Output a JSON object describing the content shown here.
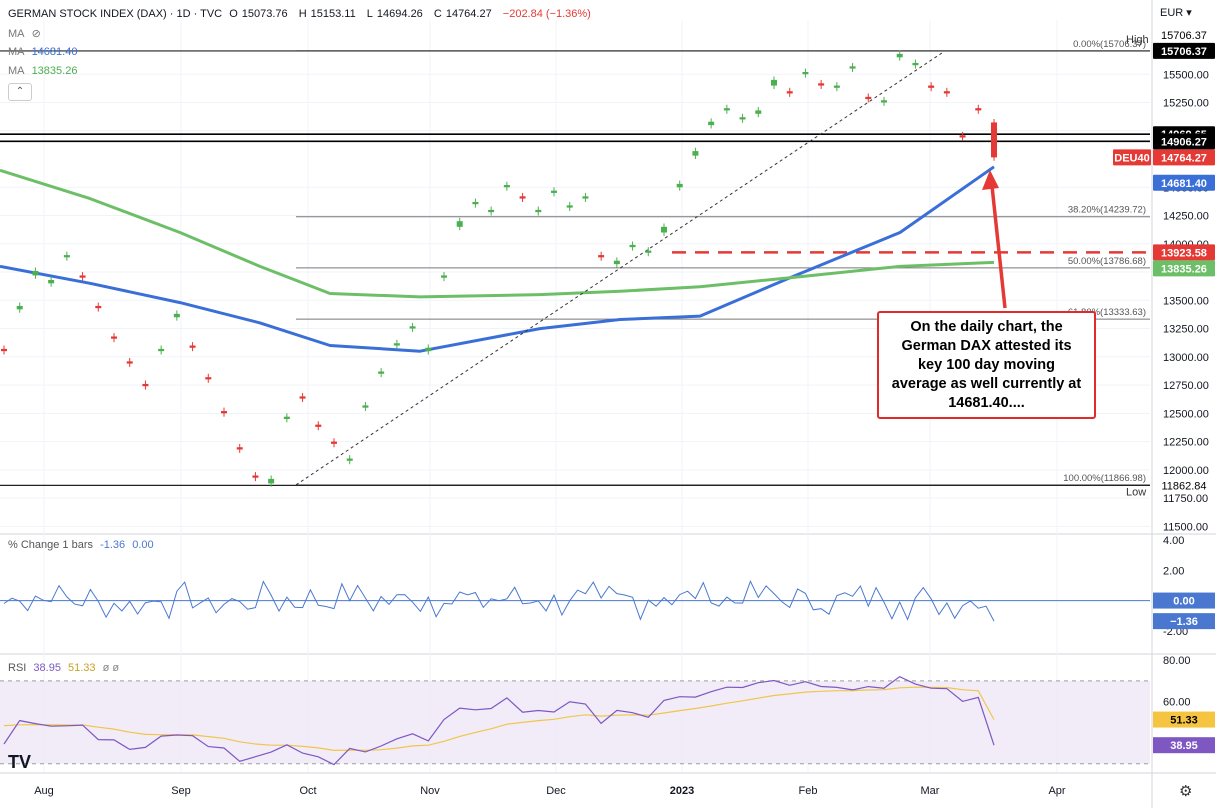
{
  "header": {
    "symbol": "GERMAN STOCK INDEX (DAX) · 1D · TVC",
    "ohlc": [
      {
        "k": "O",
        "v": "15073.76"
      },
      {
        "k": "H",
        "v": "15153.11"
      },
      {
        "k": "L",
        "v": "14694.26"
      },
      {
        "k": "C",
        "v": "14764.27"
      },
      {
        "k": "",
        "v": "−202.84 (−1.36%)"
      }
    ],
    "ma_rows": [
      {
        "label": "MA",
        "value": ""
      },
      {
        "label": "MA",
        "value": "14681.40"
      },
      {
        "label": "MA",
        "value": "13835.26"
      }
    ],
    "currency": "EUR",
    "logo": "TV"
  },
  "annotation": {
    "text": "On the daily chart, the German DAX attested its key 100 day moving average as well currently at 14681.40...."
  },
  "colors": {
    "up": "#4caf50",
    "down": "#e53935",
    "ma100": "#3a6fd8",
    "ma200": "#6dbf67",
    "percent_change": "#4a78d0",
    "rsi": "#7e57c2",
    "rsi_ma": "#f0c64a",
    "annotation_border": "#e12b2b"
  },
  "chart_data": [
    {
      "type": "candlestick",
      "title": "GERMAN STOCK INDEX (DAX) · 1D · TVC",
      "x_ticks": [
        "Aug",
        "Sep",
        "Oct",
        "Nov",
        "Dec",
        "2023",
        "Feb",
        "Mar",
        "Apr"
      ],
      "y_ticks": [
        "15500.00",
        "15250.00",
        "15000.00",
        "14500.00",
        "14250.00",
        "14000.00",
        "13750.00",
        "13500.00",
        "13250.00",
        "13000.00",
        "12750.00",
        "12500.00",
        "12250.00",
        "12000.00",
        "11750.00",
        "11500.00"
      ],
      "ylim": [
        11450,
        15980
      ],
      "ohlc_path": [
        [
          13070,
          13050
        ],
        [
          13420,
          13450
        ],
        [
          13720,
          13760
        ],
        [
          13650,
          13680
        ],
        [
          13880,
          13900
        ],
        [
          13720,
          13700
        ],
        [
          13450,
          13430
        ],
        [
          13180,
          13160
        ],
        [
          12960,
          12940
        ],
        [
          12760,
          12740
        ],
        [
          13050,
          13070
        ],
        [
          13350,
          13380
        ],
        [
          13100,
          13080
        ],
        [
          12820,
          12800
        ],
        [
          12520,
          12500
        ],
        [
          12200,
          12180
        ],
        [
          11950,
          11930
        ],
        [
          11880,
          11920
        ],
        [
          12450,
          12470
        ],
        [
          12650,
          12630
        ],
        [
          12400,
          12380
        ],
        [
          12250,
          12230
        ],
        [
          12080,
          12100
        ],
        [
          12550,
          12570
        ],
        [
          12850,
          12870
        ],
        [
          13100,
          13120
        ],
        [
          13250,
          13270
        ],
        [
          13050,
          13080
        ],
        [
          13700,
          13720
        ],
        [
          14150,
          14200
        ],
        [
          14350,
          14370
        ],
        [
          14280,
          14300
        ],
        [
          14500,
          14520
        ],
        [
          14420,
          14400
        ],
        [
          14280,
          14300
        ],
        [
          14450,
          14470
        ],
        [
          14320,
          14340
        ],
        [
          14400,
          14420
        ],
        [
          13900,
          13880
        ],
        [
          13820,
          13850
        ],
        [
          13970,
          13990
        ],
        [
          13920,
          13940
        ],
        [
          14100,
          14150
        ],
        [
          14500,
          14530
        ],
        [
          14780,
          14820
        ],
        [
          15050,
          15080
        ],
        [
          15180,
          15200
        ],
        [
          15100,
          15120
        ],
        [
          15150,
          15180
        ],
        [
          15400,
          15450
        ],
        [
          15350,
          15330
        ],
        [
          15500,
          15520
        ],
        [
          15420,
          15400
        ],
        [
          15380,
          15400
        ],
        [
          15550,
          15570
        ],
        [
          15300,
          15280
        ],
        [
          15250,
          15270
        ],
        [
          15650,
          15680
        ],
        [
          15580,
          15600
        ],
        [
          15400,
          15380
        ],
        [
          15350,
          15330
        ],
        [
          14960,
          14940
        ],
        [
          15200,
          15180
        ],
        [
          15073.76,
          14764.27
        ]
      ],
      "last_close": 14764.27,
      "levels": [
        {
          "label": "High",
          "value": 15706.37
        },
        {
          "label": "",
          "value": 14969.65
        },
        {
          "label": "",
          "value": 14906.27
        },
        {
          "label": "",
          "value": 13923.58
        },
        {
          "label": "Low",
          "value": 11862.84
        }
      ],
      "fibonacci": [
        {
          "label": "0.00%(15706.37)",
          "value": 15706.37
        },
        {
          "label": "38.20%(14239.72)",
          "value": 14239.72
        },
        {
          "label": "50.00%(13786.68)",
          "value": 13786.68
        },
        {
          "label": "61.80%(13333.63)",
          "value": 13333.63
        },
        {
          "label": "100.00%(11866.98)",
          "value": 11866.98
        }
      ],
      "trendline": {
        "from": 11866.98,
        "to": 15706.37
      },
      "price_tags": [
        {
          "text": "15706.37",
          "value": 15706.37,
          "kind": "high"
        },
        {
          "text": "15706.37",
          "value": 15706.37,
          "kind": "level"
        },
        {
          "text": "14969.65",
          "value": 14969.65,
          "kind": "level"
        },
        {
          "text": "14906.27",
          "value": 14906.27,
          "kind": "level"
        },
        {
          "text": "DEU40",
          "value": 14764.27,
          "kind": "symbol"
        },
        {
          "text": "14764.27",
          "value": 14764.27,
          "kind": "last"
        },
        {
          "text": "14681.40",
          "value": 14681.4,
          "kind": "ma100"
        },
        {
          "text": "13923.58",
          "value": 13923.58,
          "kind": "red-level"
        },
        {
          "text": "13835.26",
          "value": 13835.26,
          "kind": "ma200"
        },
        {
          "text": "11862.84",
          "value": 11862.84,
          "kind": "low"
        }
      ],
      "series": [
        {
          "name": "MA",
          "value": 14681.4,
          "path": [
            13800,
            13650,
            13480,
            13300,
            13100,
            13050,
            13250,
            13330,
            13360,
            13700,
            14100,
            14681.4
          ]
        },
        {
          "name": "MA",
          "value": 13835.26,
          "path": [
            14650,
            14400,
            14100,
            13800,
            13560,
            13530,
            13550,
            13580,
            13620,
            13700,
            13800,
            13835.26
          ]
        }
      ]
    },
    {
      "type": "line",
      "title": "% Change 1 bars",
      "values_shown": [
        "-1.36",
        "0.00"
      ],
      "y_ticks": [
        "4.00",
        "2.00",
        "0.00",
        "-2.00"
      ],
      "ylim": [
        -3.4,
        4.4
      ],
      "last_value": -1.36,
      "tags": [
        "0.00",
        "−1.36"
      ]
    },
    {
      "type": "line",
      "title": "RSI",
      "values_shown": [
        "38.95",
        "51.33"
      ],
      "y_ticks": [
        "80.00",
        "60.00"
      ],
      "ylim": [
        26,
        83
      ],
      "band": [
        30,
        70
      ],
      "rsi_last": 38.95,
      "rsi_ma_last": 51.33,
      "tags": [
        "51.33",
        "38.95"
      ]
    }
  ]
}
